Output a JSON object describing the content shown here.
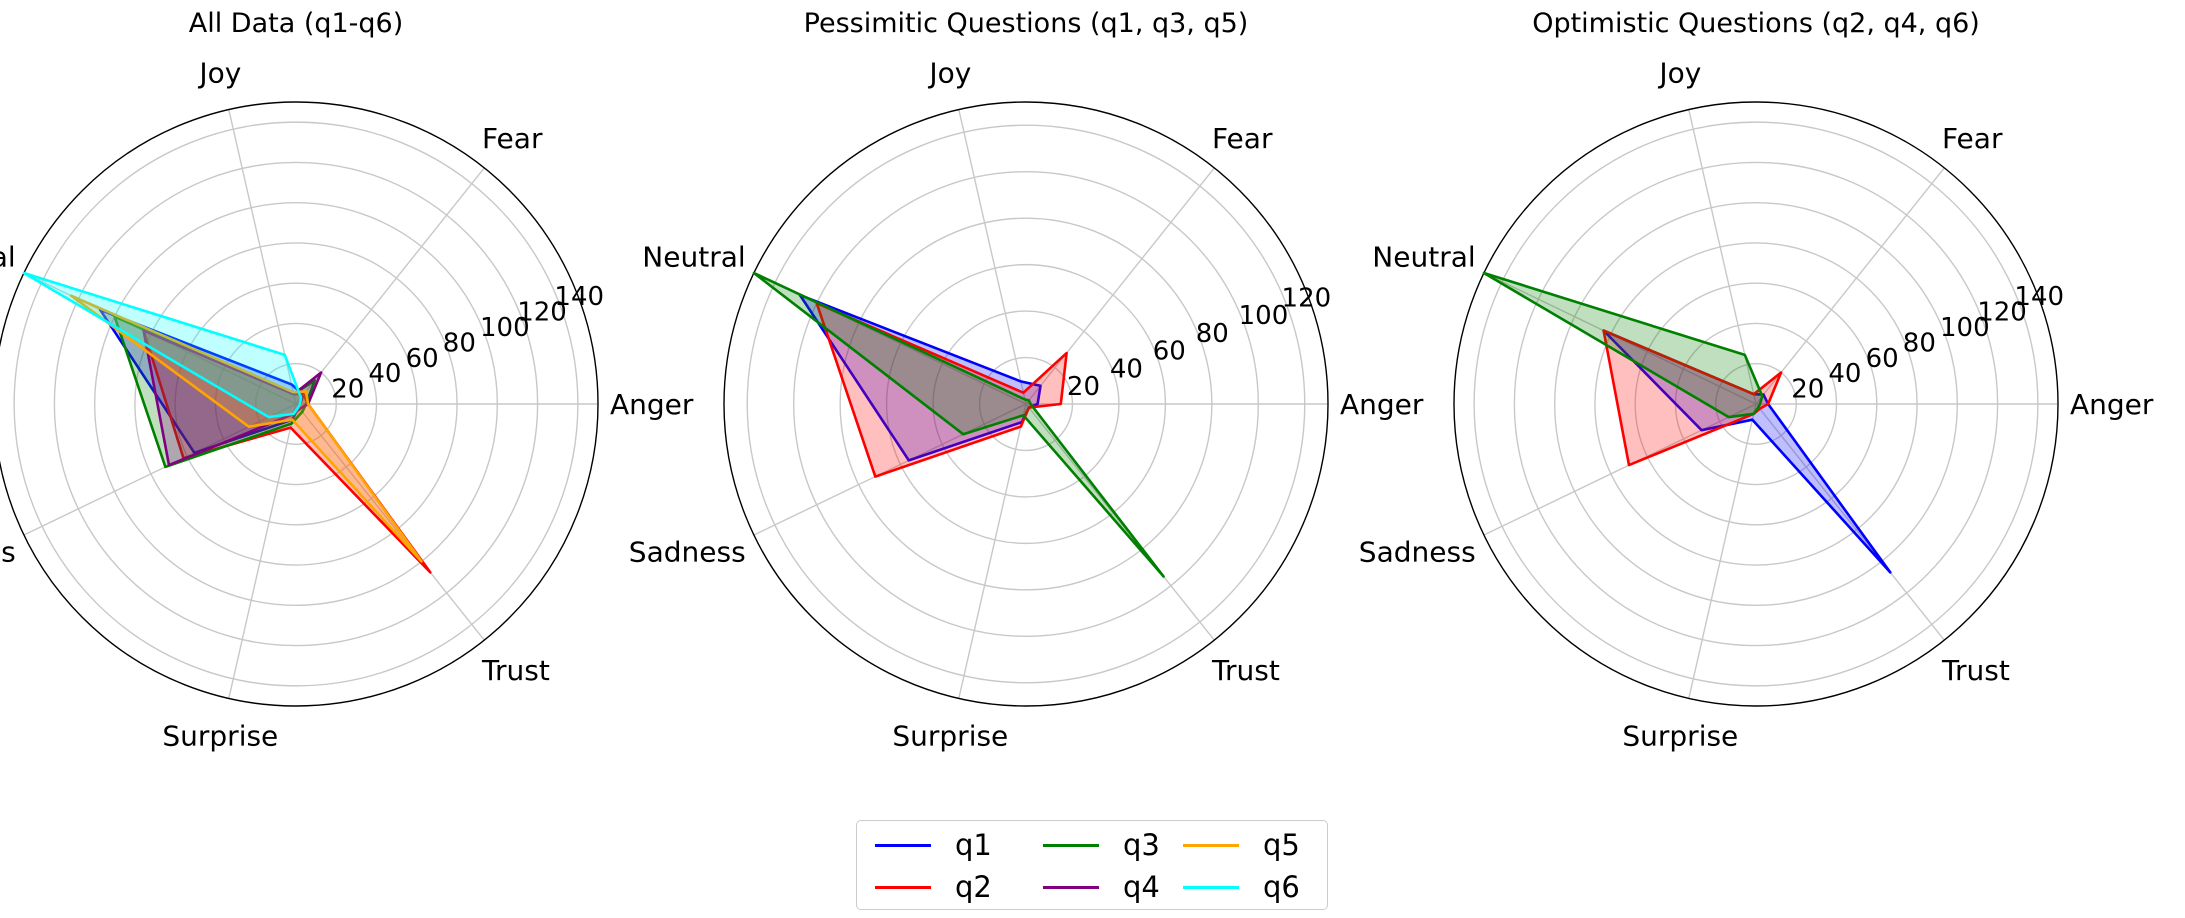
{
  "chart_data": {
    "type": "radar",
    "axes": [
      "Anger",
      "Fear",
      "Joy",
      "Neutral",
      "Sadness",
      "Surprise",
      "Trust"
    ],
    "colors": {
      "q1": "#0000ff",
      "q2": "#ff0000",
      "q3": "#008000",
      "q4": "#800080",
      "q5": "#ffa500",
      "q6": "#00ffff"
    },
    "legend": {
      "placement": "bottom-center",
      "ncol": 3,
      "entries": [
        "q1",
        "q2",
        "q3",
        "q4",
        "q5",
        "q6"
      ]
    },
    "grid": true,
    "panels": [
      {
        "title": "All Data (q1-q6)",
        "rmax": 150,
        "rticks": [
          20,
          40,
          60,
          80,
          100,
          120,
          140
        ],
        "series": [
          {
            "name": "q1",
            "values": [
              2,
              6,
              10,
              108,
              56,
              8,
              2
            ]
          },
          {
            "name": "q2",
            "values": [
              6,
              6,
              5,
              84,
              62,
              12,
              107
            ]
          },
          {
            "name": "q3",
            "values": [
              5,
              15,
              5,
              100,
              72,
              10,
              5
            ]
          },
          {
            "name": "q4",
            "values": [
              6,
              20,
              5,
              84,
              70,
              5,
              3
            ]
          },
          {
            "name": "q5",
            "values": [
              6,
              8,
              6,
              124,
              26,
              8,
              100
            ]
          },
          {
            "name": "q6",
            "values": [
              2,
              4,
              25,
              150,
              15,
              5,
              2
            ]
          }
        ]
      },
      {
        "title": "Pessimitic Questions (q1, q3, q5)",
        "rmax": 130,
        "rticks": [
          20,
          40,
          60,
          80,
          100,
          120
        ],
        "series": [
          {
            "name": "q1",
            "values": [
              5,
              10,
              10,
              108,
              56,
              8,
              2
            ]
          },
          {
            "name": "q2",
            "values": [
              15,
              28,
              5,
              100,
              72,
              10,
              2
            ]
          },
          {
            "name": "q3",
            "values": [
              2,
              2,
              2,
              130,
              30,
              5,
              95
            ]
          }
        ]
      },
      {
        "title": "Optimistic Questions (q2, q4, q6)",
        "rmax": 150,
        "rticks": [
          20,
          40,
          60,
          80,
          100,
          120,
          140
        ],
        "series": [
          {
            "name": "q1",
            "values": [
              6,
              6,
              5,
              84,
              30,
              8,
              107
            ]
          },
          {
            "name": "q2",
            "values": [
              6,
              20,
              5,
              84,
              70,
              5,
              3
            ]
          },
          {
            "name": "q3",
            "values": [
              2,
              5,
              25,
              150,
              15,
              5,
              2
            ]
          }
        ]
      }
    ]
  }
}
